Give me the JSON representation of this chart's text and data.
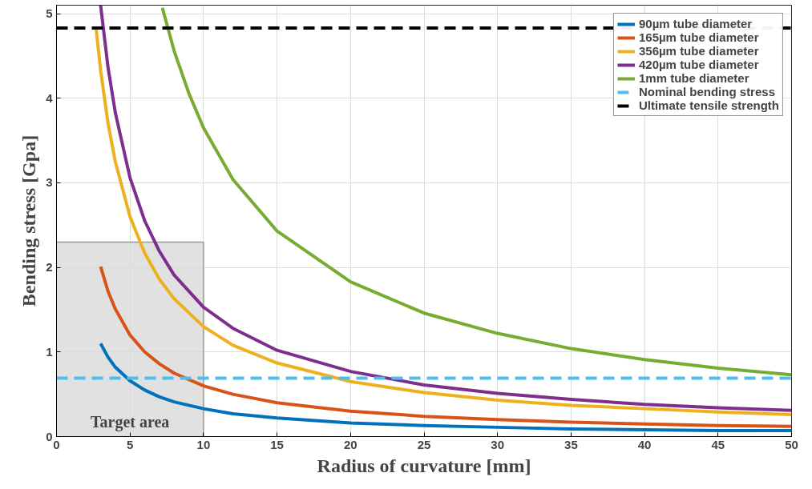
{
  "chart_data": {
    "type": "line",
    "xlabel": "Radius of curvature [mm]",
    "ylabel": "Bending stress [Gpa]",
    "xlim": [
      0,
      50
    ],
    "xticks": [
      0,
      5,
      10,
      15,
      20,
      25,
      30,
      35,
      40,
      45,
      50
    ],
    "ylim": [
      0,
      5.1
    ],
    "yticks": [
      0,
      1,
      2,
      3,
      4,
      5
    ],
    "grid": true,
    "legend": "top right",
    "line_style": "solid",
    "marker": "none",
    "series": [
      {
        "type": "area",
        "color": "#d9d9d9",
        "x": [
          0,
          10
        ],
        "values": [
          2.3,
          2.3
        ]
      },
      {
        "name": "90µm tube diameter",
        "color": "#0072bd",
        "x": [
          3,
          3.5,
          4,
          5,
          6,
          7,
          8,
          10,
          12,
          15,
          20,
          25,
          30,
          35,
          40,
          45,
          50
        ],
        "values": [
          1.1,
          0.94,
          0.82,
          0.66,
          0.55,
          0.47,
          0.41,
          0.33,
          0.27,
          0.22,
          0.16,
          0.13,
          0.11,
          0.09,
          0.08,
          0.07,
          0.07
        ]
      },
      {
        "name": "165µm tube diameter",
        "color": "#d95319",
        "x": [
          3,
          3.5,
          4,
          5,
          6,
          7,
          8,
          10,
          12,
          15,
          20,
          25,
          30,
          35,
          40,
          45,
          50
        ],
        "values": [
          2.01,
          1.72,
          1.51,
          1.2,
          1.0,
          0.86,
          0.75,
          0.6,
          0.5,
          0.4,
          0.3,
          0.24,
          0.2,
          0.17,
          0.15,
          0.13,
          0.12
        ]
      },
      {
        "name": "356µm tube diameter",
        "color": "#edb120",
        "x": [
          2.7,
          3,
          3.5,
          4,
          5,
          6,
          7,
          8,
          10,
          12,
          15,
          20,
          25,
          30,
          35,
          40,
          45,
          50
        ],
        "values": [
          4.81,
          4.33,
          3.71,
          3.25,
          2.6,
          2.17,
          1.86,
          1.63,
          1.3,
          1.08,
          0.87,
          0.65,
          0.52,
          0.43,
          0.37,
          0.33,
          0.29,
          0.26
        ]
      },
      {
        "name": "420µm tube diameter",
        "color": "#7e2f8e",
        "x": [
          3,
          3.5,
          4,
          5,
          6,
          7,
          8,
          10,
          12,
          15,
          20,
          25,
          30,
          35,
          40,
          45,
          50
        ],
        "values": [
          5.1,
          4.37,
          3.83,
          3.06,
          2.55,
          2.19,
          1.91,
          1.53,
          1.28,
          1.02,
          0.77,
          0.61,
          0.51,
          0.44,
          0.38,
          0.34,
          0.31
        ]
      },
      {
        "name": "1mm tube diameter",
        "color": "#77ac30",
        "x": [
          7.2,
          8,
          9,
          10,
          12,
          15,
          20,
          25,
          30,
          35,
          40,
          45,
          50
        ],
        "values": [
          5.07,
          4.56,
          4.06,
          3.65,
          3.04,
          2.43,
          1.83,
          1.46,
          1.22,
          1.04,
          0.91,
          0.81,
          0.73
        ]
      }
    ],
    "ref_lines": [
      {
        "axis": "y",
        "value": 0.69,
        "label": "Nominal bending stress",
        "color": "#4dbeee",
        "line_style": "dashed"
      },
      {
        "axis": "y",
        "value": 4.83,
        "label": "Ultimate tensile strength",
        "color": "#000000",
        "line_style": "dashed"
      }
    ],
    "annotations": [
      {
        "text": "Target area",
        "x": 5,
        "y": 0
      }
    ]
  }
}
